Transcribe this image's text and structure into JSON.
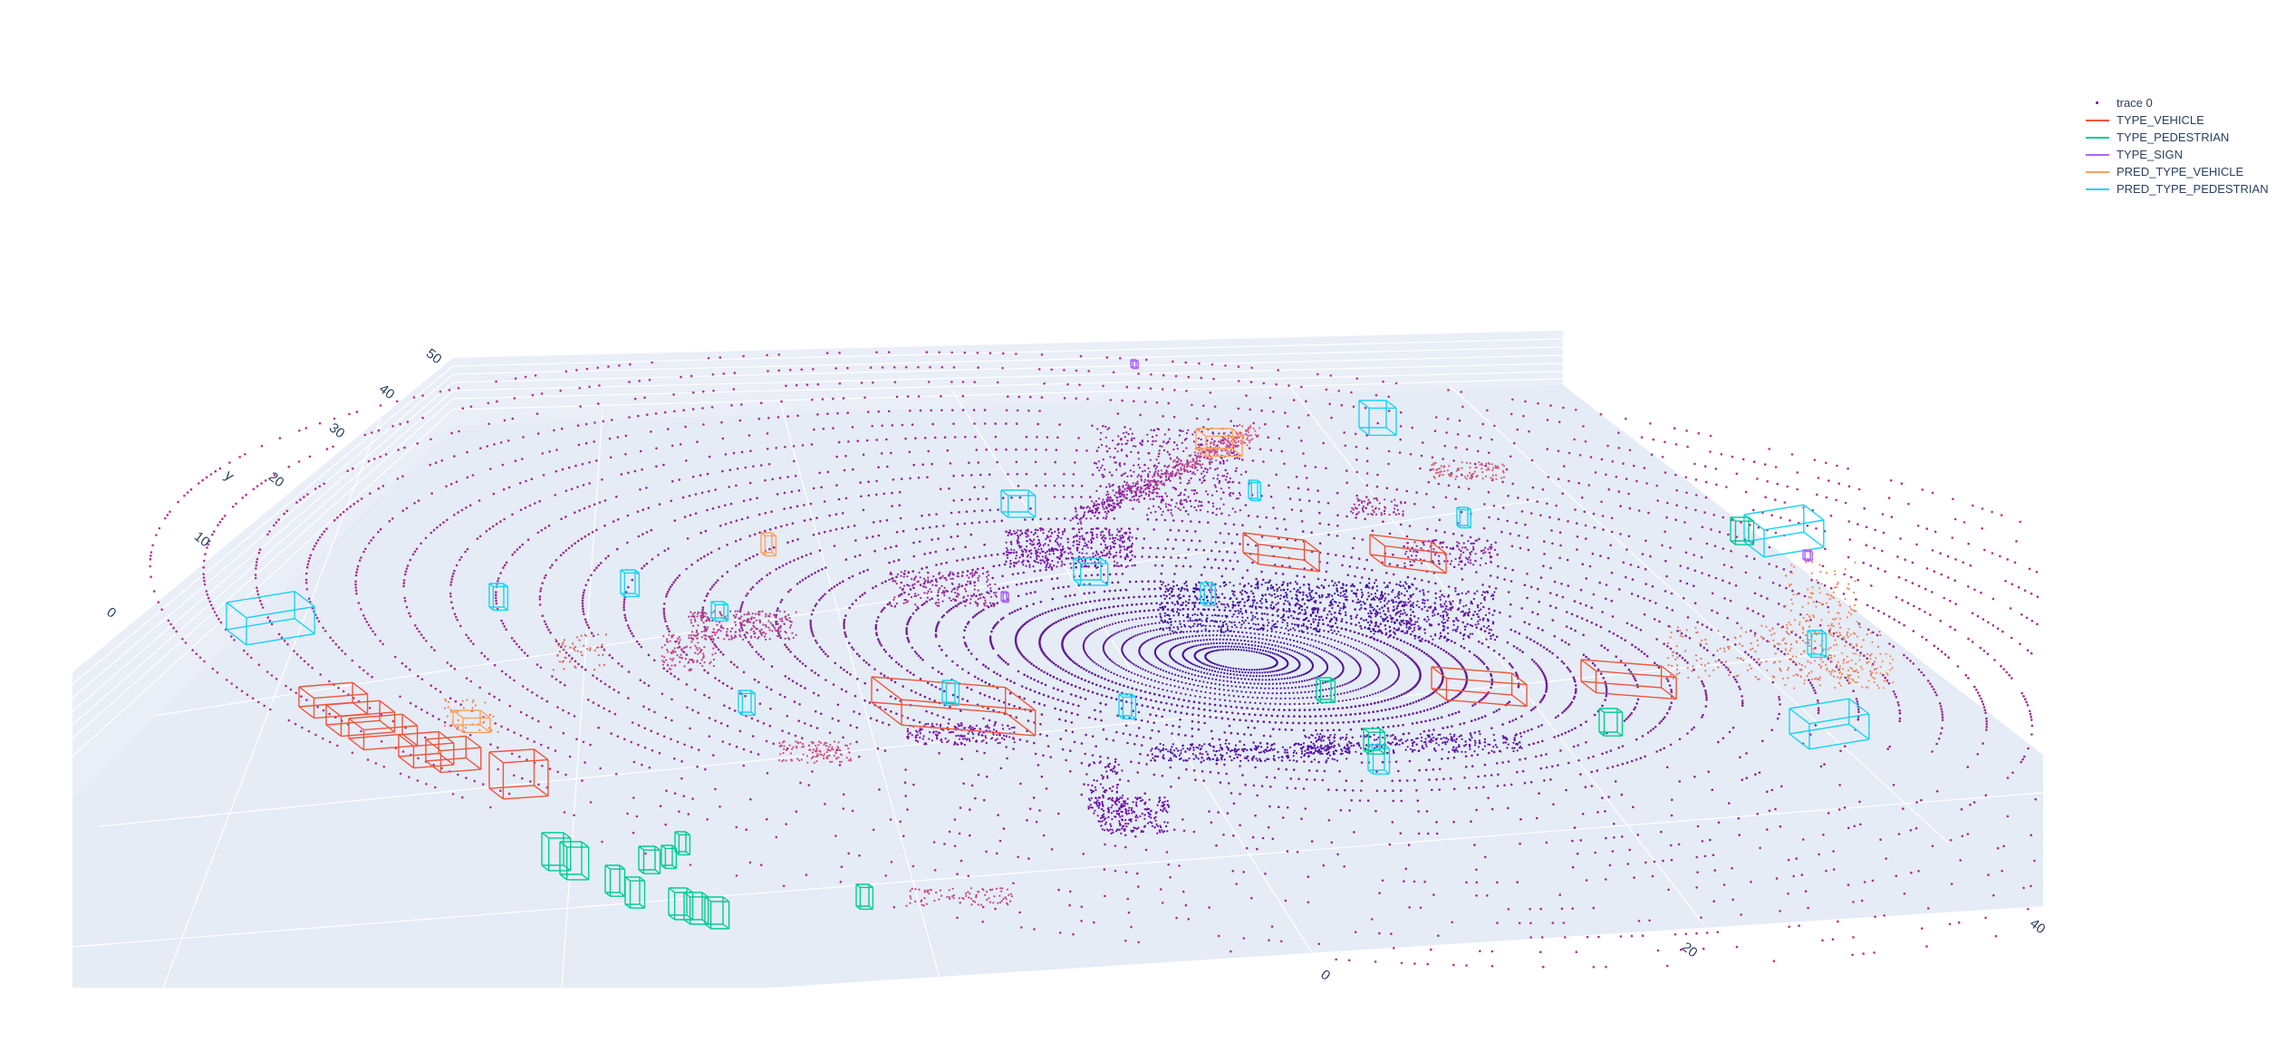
{
  "chart_data": {
    "type": "scatter",
    "subtype": "3d-lidar-scatter-with-bounding-boxes",
    "title": "",
    "axes": {
      "x": {
        "label": "",
        "ticks": [
          "0",
          "20",
          "40"
        ]
      },
      "y": {
        "label": "y",
        "ticks": [
          "0",
          "10",
          "20",
          "30",
          "40",
          "50"
        ]
      },
      "z": {
        "label": "",
        "ticks": []
      }
    },
    "background_color": "#e5ecf6",
    "legend_position": "top-right",
    "series": [
      {
        "name": "trace 0",
        "kind": "points",
        "color": "#6a00a8"
      },
      {
        "name": "TYPE_VEHICLE",
        "kind": "box-lines",
        "color": "#ef553b"
      },
      {
        "name": "TYPE_PEDESTRIAN",
        "kind": "box-lines",
        "color": "#00cc96"
      },
      {
        "name": "TYPE_SIGN",
        "kind": "box-lines",
        "color": "#ab63fa"
      },
      {
        "name": "PRED_TYPE_VEHICLE",
        "kind": "box-lines",
        "color": "#ffa15a"
      },
      {
        "name": "PRED_TYPE_PEDESTRIAN",
        "kind": "box-lines",
        "color": "#19d3f3"
      }
    ]
  }
}
